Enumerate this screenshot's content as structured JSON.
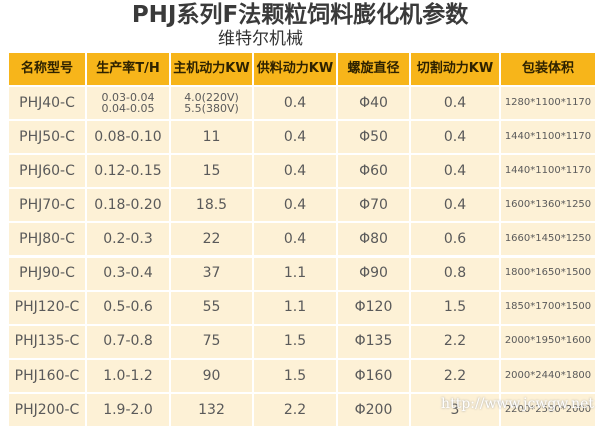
{
  "title": "PHJ系列F法颗粒饲料膨化机参数",
  "subtitle": "维特尔机械",
  "watermark": "http://www.jcwgw.net",
  "table": {
    "header": [
      "名称型号",
      "生产率T/H",
      "主机动力KW",
      "供料动力KW",
      "螺旋直径",
      "切割动力KW",
      "包装体积"
    ],
    "rows": [
      [
        "PHJ40-C",
        [
          "0.03-0.04",
          "0.04-0.05"
        ],
        [
          "4.0(220V)",
          "5.5(380V)"
        ],
        "0.4",
        "Φ40",
        "0.4",
        "1280*1100*1170"
      ],
      [
        "PHJ50-C",
        "0.08-0.10",
        "11",
        "0.4",
        "Φ50",
        "0.4",
        "1440*1100*1170"
      ],
      [
        "PHJ60-C",
        "0.12-0.15",
        "15",
        "0.4",
        "Φ60",
        "0.4",
        "1440*1100*1170"
      ],
      [
        "PHJ70-C",
        "0.18-0.20",
        "18.5",
        "0.4",
        "Φ70",
        "0.4",
        "1600*1360*1250"
      ],
      [
        "PHJ80-C",
        "0.2-0.3",
        "22",
        "0.4",
        "Φ80",
        "0.6",
        "1660*1450*1250"
      ],
      [
        "PHJ90-C",
        "0.3-0.4",
        "37",
        "1.1",
        "Φ90",
        "0.8",
        "1800*1650*1500"
      ],
      [
        "PHJ120-C",
        "0.5-0.6",
        "55",
        "1.1",
        "Φ120",
        "1.5",
        "1850*1700*1500"
      ],
      [
        "PHJ135-C",
        "0.7-0.8",
        "75",
        "1.5",
        "Φ135",
        "2.2",
        "2000*1950*1600"
      ],
      [
        "PHJ160-C",
        "1.0-1.2",
        "90",
        "1.5",
        "Φ160",
        "2.2",
        "2000*2440*1800"
      ],
      [
        "PHJ200-C",
        "1.9-2.0",
        "132",
        "2.2",
        "Φ200",
        "3",
        "2200*2500*2000"
      ]
    ]
  }
}
